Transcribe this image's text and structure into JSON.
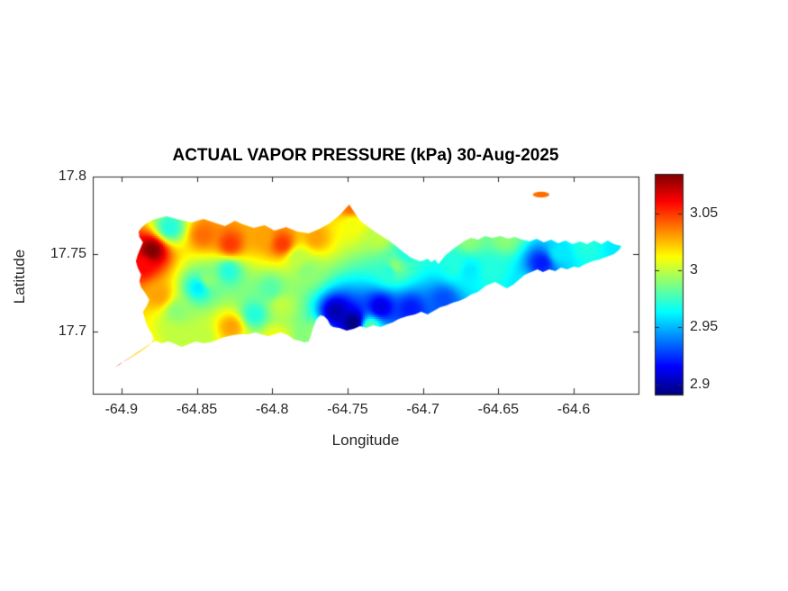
{
  "chart_data": {
    "type": "heatmap",
    "title": "ACTUAL VAPOR PRESSURE (kPa) 30-Aug-2025",
    "variable": "ACTUAL VAPOR PRESSURE",
    "units": "kPa",
    "date": "30-Aug-2025",
    "grid": false,
    "legend": "colorbar-right",
    "x_axis": {
      "label": "Longitude",
      "tick_values": [
        -64.9,
        -64.85,
        -64.8,
        -64.75,
        -64.7,
        -64.65,
        -64.6
      ],
      "tick_labels": [
        "-64.9",
        "-64.85",
        "-64.8",
        "-64.75",
        "-64.7",
        "-64.65",
        "-64.6"
      ]
    },
    "y_axis": {
      "label": "Latitude",
      "tick_values": [
        17.8,
        17.75,
        17.7
      ],
      "tick_labels": [
        "17.8",
        "17.75",
        "17.7"
      ]
    },
    "xlim": [
      -64.919,
      -64.557
    ],
    "ylim": [
      17.66,
      17.8
    ],
    "colorbar": {
      "colormap": "jet",
      "cmin": 2.891,
      "cmax": 3.085,
      "tick_values": [
        3.05,
        3.0,
        2.95,
        2.9
      ],
      "tick_labels": [
        "3.05",
        "3",
        "2.95",
        "2.9"
      ]
    },
    "island_outline": [
      [
        -64.8791,
        17.7721
      ],
      [
        -64.8701,
        17.7744
      ],
      [
        -64.8612,
        17.7721
      ],
      [
        -64.8534,
        17.7704
      ],
      [
        -64.8456,
        17.7727
      ],
      [
        -64.8385,
        17.7704
      ],
      [
        -64.8313,
        17.768
      ],
      [
        -64.8247,
        17.7715
      ],
      [
        -64.8194,
        17.7692
      ],
      [
        -64.8122,
        17.7669
      ],
      [
        -64.805,
        17.7686
      ],
      [
        -64.7984,
        17.7651
      ],
      [
        -64.7907,
        17.7675
      ],
      [
        -64.7835,
        17.7646
      ],
      [
        -64.7757,
        17.7634
      ],
      [
        -64.7686,
        17.7663
      ],
      [
        -64.762,
        17.7698
      ],
      [
        -64.7554,
        17.775
      ],
      [
        -64.7489,
        17.782
      ],
      [
        -64.7453,
        17.7768
      ],
      [
        -64.7417,
        17.7715
      ],
      [
        -64.7369,
        17.768
      ],
      [
        -64.7321,
        17.7646
      ],
      [
        -64.7274,
        17.7616
      ],
      [
        -64.7226,
        17.7587
      ],
      [
        -64.7178,
        17.7553
      ],
      [
        -64.7136,
        17.7518
      ],
      [
        -64.7088,
        17.7483
      ],
      [
        -64.7052,
        17.7465
      ],
      [
        -64.7023,
        17.7454
      ],
      [
        -64.6993,
        17.746
      ],
      [
        -64.6969,
        17.7471
      ],
      [
        -64.6945,
        17.7448
      ],
      [
        -64.6921,
        17.7465
      ],
      [
        -64.6897,
        17.7436
      ],
      [
        -64.6873,
        17.7465
      ],
      [
        -64.6849,
        17.7494
      ],
      [
        -64.6819,
        17.7518
      ],
      [
        -64.679,
        17.7541
      ],
      [
        -64.6754,
        17.7564
      ],
      [
        -64.6718,
        17.7587
      ],
      [
        -64.6682,
        17.7605
      ],
      [
        -64.6634,
        17.7593
      ],
      [
        -64.6587,
        17.7616
      ],
      [
        -64.6539,
        17.7605
      ],
      [
        -64.6485,
        17.7616
      ],
      [
        -64.6437,
        17.7599
      ],
      [
        -64.6389,
        17.7611
      ],
      [
        -64.6342,
        17.7593
      ],
      [
        -64.6294,
        17.7582
      ],
      [
        -64.6246,
        17.7599
      ],
      [
        -64.6198,
        17.7576
      ],
      [
        -64.615,
        17.7593
      ],
      [
        -64.6103,
        17.757
      ],
      [
        -64.6055,
        17.7587
      ],
      [
        -64.6007,
        17.7564
      ],
      [
        -64.5959,
        17.7582
      ],
      [
        -64.5911,
        17.7564
      ],
      [
        -64.5864,
        17.7587
      ],
      [
        -64.5816,
        17.7564
      ],
      [
        -64.5774,
        17.7587
      ],
      [
        -64.5732,
        17.7564
      ],
      [
        -64.5684,
        17.7553
      ],
      [
        -64.5696,
        17.7529
      ],
      [
        -64.5732,
        17.75
      ],
      [
        -64.578,
        17.7483
      ],
      [
        -64.5828,
        17.7465
      ],
      [
        -64.5876,
        17.7454
      ],
      [
        -64.5923,
        17.7436
      ],
      [
        -64.5965,
        17.7413
      ],
      [
        -64.6001,
        17.7419
      ],
      [
        -64.6043,
        17.7401
      ],
      [
        -64.6085,
        17.7413
      ],
      [
        -64.6121,
        17.739
      ],
      [
        -64.6162,
        17.7401
      ],
      [
        -64.6204,
        17.7384
      ],
      [
        -64.624,
        17.7401
      ],
      [
        -64.6282,
        17.7384
      ],
      [
        -64.6324,
        17.7367
      ],
      [
        -64.6359,
        17.7338
      ],
      [
        -64.6401,
        17.7303
      ],
      [
        -64.6443,
        17.7279
      ],
      [
        -64.6479,
        17.7297
      ],
      [
        -64.6521,
        17.732
      ],
      [
        -64.6581,
        17.7297
      ],
      [
        -64.6634,
        17.7256
      ],
      [
        -64.6682,
        17.7239
      ],
      [
        -64.6718,
        17.7216
      ],
      [
        -64.676,
        17.7198
      ],
      [
        -64.6802,
        17.7186
      ],
      [
        -64.6843,
        17.7169
      ],
      [
        -64.6885,
        17.7157
      ],
      [
        -64.6927,
        17.7134
      ],
      [
        -64.6969,
        17.7111
      ],
      [
        -64.7011,
        17.7128
      ],
      [
        -64.7052,
        17.7111
      ],
      [
        -64.7106,
        17.7099
      ],
      [
        -64.716,
        17.7082
      ],
      [
        -64.7202,
        17.7059
      ],
      [
        -64.7238,
        17.7047
      ],
      [
        -64.7279,
        17.703
      ],
      [
        -64.7327,
        17.7041
      ],
      [
        -64.7375,
        17.7024
      ],
      [
        -64.7417,
        17.7035
      ],
      [
        -64.7459,
        17.7018
      ],
      [
        -64.7506,
        17.7006
      ],
      [
        -64.7554,
        17.7024
      ],
      [
        -64.7596,
        17.703
      ],
      [
        -64.7614,
        17.7041
      ],
      [
        -64.7632,
        17.7076
      ],
      [
        -64.7656,
        17.7099
      ],
      [
        -64.768,
        17.7105
      ],
      [
        -64.7704,
        17.7082
      ],
      [
        -64.7722,
        17.7041
      ],
      [
        -64.7734,
        17.7006
      ],
      [
        -64.7745,
        17.6971
      ],
      [
        -64.7757,
        17.6937
      ],
      [
        -64.7787,
        17.6931
      ],
      [
        -64.7817,
        17.6942
      ],
      [
        -64.7853,
        17.6948
      ],
      [
        -64.7895,
        17.6977
      ],
      [
        -64.7943,
        17.6995
      ],
      [
        -64.7984,
        17.6983
      ],
      [
        -64.8026,
        17.6971
      ],
      [
        -64.8074,
        17.6983
      ],
      [
        -64.811,
        17.6995
      ],
      [
        -64.8158,
        17.6983
      ],
      [
        -64.8211,
        17.6983
      ],
      [
        -64.8259,
        17.6977
      ],
      [
        -64.8313,
        17.6966
      ],
      [
        -64.8361,
        17.6948
      ],
      [
        -64.8409,
        17.6931
      ],
      [
        -64.8456,
        17.6925
      ],
      [
        -64.8504,
        17.6937
      ],
      [
        -64.8552,
        17.6919
      ],
      [
        -64.86,
        17.6902
      ],
      [
        -64.8642,
        17.6919
      ],
      [
        -64.8689,
        17.6937
      ],
      [
        -64.8731,
        17.6925
      ],
      [
        -64.8773,
        17.6942
      ],
      [
        -64.8815,
        17.6919
      ],
      [
        -64.8857,
        17.689
      ],
      [
        -64.8904,
        17.6861
      ],
      [
        -64.8946,
        17.6832
      ],
      [
        -64.8982,
        17.6809
      ],
      [
        -64.9018,
        17.6785
      ],
      [
        -64.9042,
        17.6768
      ],
      [
        -64.9012,
        17.6791
      ],
      [
        -64.897,
        17.6815
      ],
      [
        -64.8928,
        17.6838
      ],
      [
        -64.8881,
        17.6867
      ],
      [
        -64.8839,
        17.6896
      ],
      [
        -64.8803,
        17.6925
      ],
      [
        -64.8785,
        17.6954
      ],
      [
        -64.8797,
        17.6983
      ],
      [
        -64.8815,
        17.7012
      ],
      [
        -64.8833,
        17.7047
      ],
      [
        -64.8845,
        17.7088
      ],
      [
        -64.8857,
        17.7128
      ],
      [
        -64.8833,
        17.7163
      ],
      [
        -64.8815,
        17.7204
      ],
      [
        -64.8839,
        17.7245
      ],
      [
        -64.8869,
        17.7285
      ],
      [
        -64.8881,
        17.7326
      ],
      [
        -64.8869,
        17.7367
      ],
      [
        -64.8892,
        17.7413
      ],
      [
        -64.8904,
        17.7454
      ],
      [
        -64.8892,
        17.7494
      ],
      [
        -64.8875,
        17.7535
      ],
      [
        -64.8857,
        17.7576
      ],
      [
        -64.8881,
        17.7611
      ],
      [
        -64.8886,
        17.7646
      ],
      [
        -64.8863,
        17.7675
      ],
      [
        -64.8833,
        17.7698
      ]
    ],
    "cays": [
      {
        "name": "small-cay-northeast",
        "center": [
          -64.6216,
          17.7884
        ],
        "rx_deg": 0.0055,
        "ry_deg": 0.0019
      }
    ],
    "field_samples_format": [
      "lon",
      "lat",
      "value_kPa"
    ],
    "field_samples": [
      [
        -64.8803,
        17.7529,
        3.085
      ],
      [
        -64.8863,
        17.7436,
        3.06
      ],
      [
        -64.891,
        17.6861,
        3.02
      ],
      [
        -64.9024,
        17.678,
        3.075
      ],
      [
        -64.8683,
        17.7675,
        2.97
      ],
      [
        -64.8462,
        17.7628,
        3.04
      ],
      [
        -64.8283,
        17.757,
        3.05
      ],
      [
        -64.8074,
        17.7616,
        3.03
      ],
      [
        -64.7937,
        17.757,
        3.05
      ],
      [
        -64.7716,
        17.7611,
        3.03
      ],
      [
        -64.7477,
        17.7698,
        3.01
      ],
      [
        -64.7483,
        17.7808,
        3.04
      ],
      [
        -64.7298,
        17.7616,
        3.0
      ],
      [
        -64.8433,
        17.7338,
        2.99
      ],
      [
        -64.8492,
        17.7291,
        2.96
      ],
      [
        -64.8755,
        17.7239,
        3.03
      ],
      [
        -64.8636,
        17.7134,
        2.99
      ],
      [
        -64.848,
        17.6977,
        3.0
      ],
      [
        -64.8277,
        17.7035,
        3.03
      ],
      [
        -64.7984,
        17.6966,
        3.01
      ],
      [
        -64.8122,
        17.7117,
        2.97
      ],
      [
        -64.7943,
        17.7175,
        3.0
      ],
      [
        -64.7584,
        17.7134,
        2.9
      ],
      [
        -64.7465,
        17.7064,
        2.89
      ],
      [
        -64.7286,
        17.7163,
        2.91
      ],
      [
        -64.7088,
        17.7152,
        2.92
      ],
      [
        -64.6867,
        17.721,
        2.93
      ],
      [
        -64.7745,
        17.7001,
        2.99
      ],
      [
        -64.67,
        17.7396,
        2.96
      ],
      [
        -64.67,
        17.7599,
        2.99
      ],
      [
        -64.6461,
        17.7611,
        2.99
      ],
      [
        -64.6216,
        17.7448,
        2.92
      ],
      [
        -64.6342,
        17.7291,
        2.96
      ],
      [
        -64.5923,
        17.7558,
        2.97
      ],
      [
        -64.5708,
        17.7547,
        2.96
      ],
      [
        -64.6216,
        17.7884,
        3.04
      ],
      [
        -64.7775,
        17.7396,
        2.99
      ],
      [
        -64.8014,
        17.728,
        2.98
      ],
      [
        -64.7835,
        17.7483,
        3.0
      ],
      [
        -64.7226,
        17.7396,
        2.97
      ],
      [
        -64.7118,
        17.7512,
        2.97
      ],
      [
        -64.6103,
        17.7512,
        2.96
      ],
      [
        -64.6551,
        17.7396,
        2.97
      ],
      [
        -64.679,
        17.7425,
        2.97
      ],
      [
        -64.7357,
        17.7035,
        2.98
      ],
      [
        -64.8642,
        17.6989,
        3.0
      ],
      [
        -64.719,
        17.7425,
        2.99
      ],
      [
        -64.8295,
        17.7396,
        2.97
      ]
    ]
  },
  "colors": {
    "axis_text": "#262626",
    "axis_line": "#262626",
    "title_text": "#000000",
    "background": "#ffffff"
  }
}
